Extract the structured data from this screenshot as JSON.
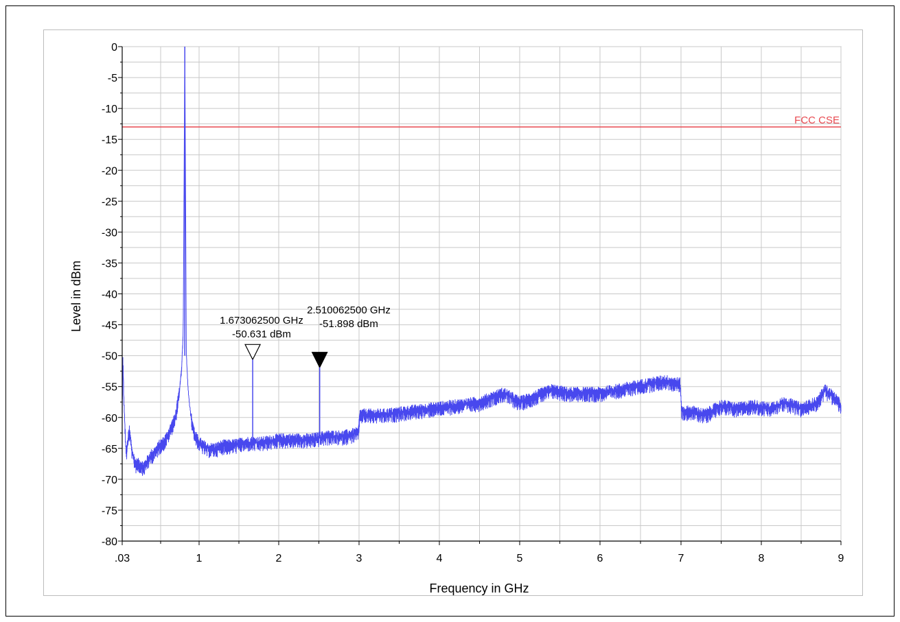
{
  "chart_data": {
    "type": "line",
    "title": "",
    "xlabel": "Frequency in GHz",
    "ylabel": "Level in dBm",
    "x_scale": "log",
    "xlim": [
      0.03,
      9
    ],
    "ylim": [
      -80,
      0
    ],
    "x_ticks": [
      0.03,
      1,
      2,
      3,
      4,
      5,
      6,
      7,
      8,
      9
    ],
    "x_tick_labels": [
      ".03",
      "1",
      "2",
      "3",
      "4",
      "5",
      "6",
      "7",
      "8",
      "9"
    ],
    "y_ticks": [
      0,
      -5,
      -10,
      -15,
      -20,
      -25,
      -30,
      -35,
      -40,
      -45,
      -50,
      -55,
      -60,
      -65,
      -70,
      -75,
      -80
    ],
    "y_tick_labels": [
      "0",
      "-5",
      "-10",
      "-15",
      "-20",
      "-25",
      "-30",
      "-35",
      "-40",
      "-45",
      "-50",
      "-55",
      "-60",
      "-65",
      "-70",
      "-75",
      "-80"
    ],
    "grid": true,
    "limit_line": {
      "label": "FCC CSE",
      "value": -13,
      "color": "#e8484f"
    },
    "series": [
      {
        "color": "#4848ee",
        "x": [
          0.03,
          0.04,
          0.05,
          0.08,
          0.12,
          0.16,
          0.2,
          0.25,
          0.3,
          0.35,
          0.4,
          0.45,
          0.5,
          0.55,
          0.6,
          0.65,
          0.7,
          0.75,
          0.78,
          0.8,
          0.82,
          0.84,
          0.86,
          0.88,
          0.9,
          0.95,
          1.0,
          1.1,
          1.2,
          1.3,
          1.4,
          1.6,
          1.8,
          2.0,
          2.2,
          2.4,
          2.6,
          2.8,
          2.99,
          3.01,
          3.3,
          3.6,
          3.9,
          4.2,
          4.5,
          4.8,
          5.0,
          5.2,
          5.4,
          5.6,
          5.8,
          6.0,
          6.2,
          6.4,
          6.6,
          6.8,
          6.99,
          7.01,
          7.15,
          7.3,
          7.5,
          7.7,
          7.9,
          8.1,
          8.3,
          8.5,
          8.7,
          8.8,
          8.9,
          9.0
        ],
        "y": [
          -60,
          -49.5,
          -57,
          -66,
          -62,
          -66,
          -67.5,
          -67.5,
          -68,
          -67,
          -66,
          -65.5,
          -64.5,
          -64,
          -63,
          -61.5,
          -60,
          -56,
          -52,
          -46,
          0,
          -50,
          -55,
          -58,
          -60,
          -63,
          -64,
          -65,
          -65,
          -64.5,
          -64.5,
          -64,
          -64,
          -63.5,
          -63.5,
          -63.5,
          -63,
          -63,
          -62.5,
          -59.5,
          -59.5,
          -59,
          -58.5,
          -58,
          -57.5,
          -56,
          -57.5,
          -56.5,
          -55.5,
          -56,
          -56,
          -56,
          -55.5,
          -55,
          -54.5,
          -54,
          -54.5,
          -59,
          -59,
          -59.5,
          -58,
          -58.5,
          -58,
          -58.5,
          -57.5,
          -58.5,
          -57.5,
          -55.5,
          -56.5,
          -58
        ]
      }
    ],
    "markers": [
      {
        "style": "hollow",
        "x": 1.6730625,
        "y": -50.631,
        "label_freq": "1.673062500 GHz",
        "label_level": "-50.631 dBm"
      },
      {
        "style": "filled",
        "x": 2.5100625,
        "y": -51.898,
        "label_freq": "2.510062500 GHz",
        "label_level": "-51.898 dBm"
      }
    ]
  }
}
